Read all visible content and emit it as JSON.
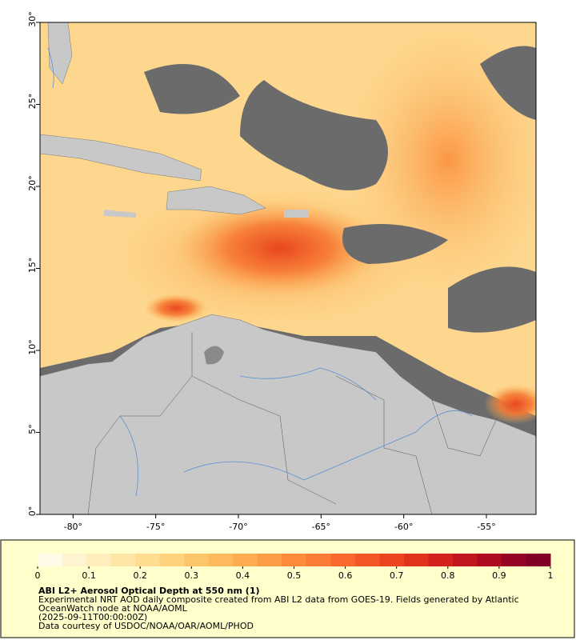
{
  "map": {
    "xlim": [
      -82,
      -52
    ],
    "ylim": [
      0,
      30
    ],
    "xticks": [
      {
        "value": -80,
        "label": "-80°"
      },
      {
        "value": -75,
        "label": "-75°"
      },
      {
        "value": -70,
        "label": "-70°"
      },
      {
        "value": -65,
        "label": "-65°"
      },
      {
        "value": -60,
        "label": "-60°"
      },
      {
        "value": -55,
        "label": "-55°"
      }
    ],
    "yticks": [
      {
        "value": 0,
        "label": "0°"
      },
      {
        "value": 5,
        "label": "5°"
      },
      {
        "value": 10,
        "label": "10°"
      },
      {
        "value": 15,
        "label": "15°"
      },
      {
        "value": 20,
        "label": "20°"
      },
      {
        "value": 25,
        "label": "25°"
      },
      {
        "value": 30,
        "label": "30°"
      }
    ]
  },
  "colorbar": {
    "lim": [
      0,
      1
    ],
    "ticks": [
      0,
      0.1,
      0.2,
      0.3,
      0.4,
      0.5,
      0.6,
      0.7,
      0.8,
      0.9,
      1
    ],
    "colors": [
      "#fffbe8",
      "#fff4d2",
      "#ffedbc",
      "#ffe5a6",
      "#ffdc90",
      "#fed27c",
      "#fec66b",
      "#feb95c",
      "#fdab50",
      "#fd9c46",
      "#fc8c3c",
      "#fb7b34",
      "#f9692d",
      "#f45727",
      "#ec4421",
      "#e1321d",
      "#d4231c",
      "#c2161e",
      "#ac0b22",
      "#960425",
      "#800026"
    ]
  },
  "caption": {
    "title": "ABI L2+ Aerosol Optical Depth at 550 nm (1)",
    "lines": [
      "Experimental NRT AOD daily composite created from ABI L2 data from GOES-19. Fields generated by Atlantic",
      "OceanWatch node at NOAA/AOML",
      "(2025-09-11T00:00:00Z)",
      "Data courtesy of USDOC/NOAA/OAR/AOML/PHOD"
    ]
  }
}
